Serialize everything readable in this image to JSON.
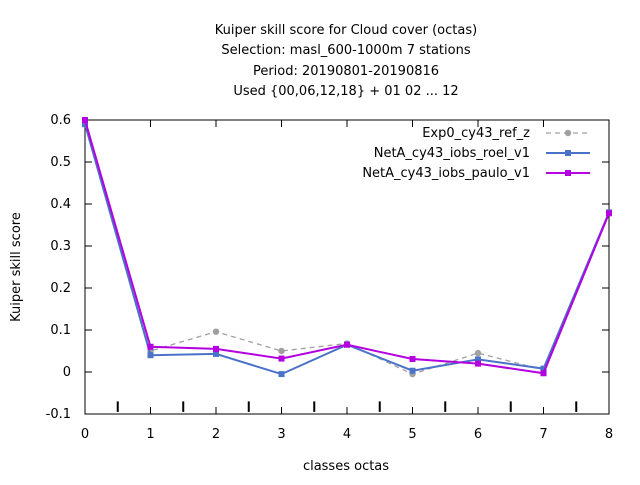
{
  "chart_data": {
    "type": "line",
    "title_lines": [
      "Kuiper skill score  for Cloud cover (octas)",
      "Selection: masl_600-1000m      7 stations",
      "Period: 20190801-20190816",
      "Used {00,06,12,18} + 01 02 ... 12"
    ],
    "xlabel": "classes octas",
    "ylabel": "Kuiper skill score",
    "xlim": [
      0,
      8
    ],
    "ylim": [
      -0.1,
      0.6
    ],
    "x_ticks": [
      "0",
      "1",
      "2",
      "3",
      "4",
      "5",
      "6",
      "7",
      "8"
    ],
    "y_ticks": [
      "-0.1",
      "0",
      "0.1",
      "0.2",
      "0.3",
      "0.4",
      "0.5",
      "0.6"
    ],
    "x": [
      0,
      1,
      2,
      3,
      4,
      5,
      6,
      7,
      8
    ],
    "legend_position": "top-right",
    "series": [
      {
        "name": "Exp0_cy43_ref_z",
        "color": "#a0a0a0",
        "dashed": true,
        "marker": "circle",
        "values": [
          0.6,
          0.05,
          0.096,
          0.05,
          0.068,
          -0.005,
          0.045,
          0.005,
          0.38
        ]
      },
      {
        "name": "NetA_cy43_iobs_roel_v1",
        "color": "#4a72c8",
        "dashed": false,
        "marker": "square",
        "values": [
          0.59,
          0.04,
          0.043,
          -0.005,
          0.065,
          0.003,
          0.03,
          0.008,
          0.38
        ]
      },
      {
        "name": "NetA_cy43_iobs_paulo_v1",
        "color": "#b400e0",
        "dashed": false,
        "marker": "square",
        "values": [
          0.6,
          0.06,
          0.055,
          0.032,
          0.065,
          0.031,
          0.02,
          -0.003,
          0.378
        ]
      }
    ]
  }
}
